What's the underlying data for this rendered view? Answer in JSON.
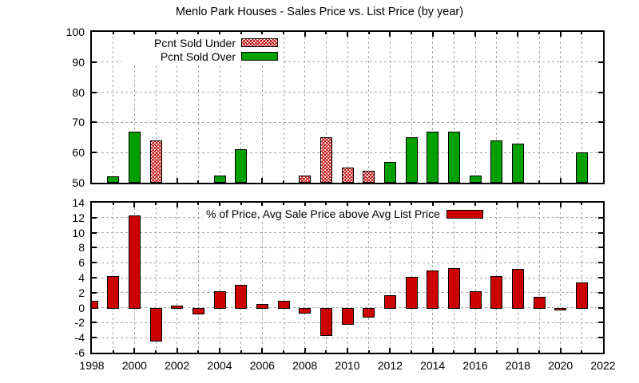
{
  "title": "Menlo Park Houses - Sales Price vs. List Price (by year)",
  "colors": {
    "green": "#00a000",
    "red": "#cc0000",
    "hatch_red": "#c00000",
    "grid": "#a8a8a8",
    "axis": "#000000",
    "background": "#ffffff"
  },
  "xaxis": {
    "range": [
      1998,
      2022
    ],
    "labeled_ticks": [
      1998,
      2000,
      2002,
      2004,
      2006,
      2008,
      2010,
      2012,
      2014,
      2016,
      2018,
      2020,
      2022
    ],
    "minor_step": 1
  },
  "chart_data": [
    {
      "id": "top",
      "type": "bar",
      "ylim": [
        50,
        100
      ],
      "yticks": [
        50,
        60,
        70,
        80,
        90,
        100
      ],
      "grid": "on",
      "legend_position": "top-left",
      "legend": [
        {
          "label": "Pcnt Sold Under",
          "style": "hatched"
        },
        {
          "label": "Pcnt Sold Over",
          "style": "green"
        }
      ],
      "series": [
        {
          "name": "Pcnt Sold Under",
          "style": "hatched",
          "points": [
            [
              2001,
              64
            ],
            [
              2008,
              52.5
            ],
            [
              2009,
              65
            ],
            [
              2010,
              55
            ],
            [
              2011,
              54
            ]
          ]
        },
        {
          "name": "Pcnt Sold Over",
          "style": "green",
          "points": [
            [
              1999,
              52
            ],
            [
              2000,
              67
            ],
            [
              2004,
              52.5
            ],
            [
              2005,
              61
            ],
            [
              2012,
              57
            ],
            [
              2013,
              65
            ],
            [
              2014,
              67
            ],
            [
              2015,
              67
            ],
            [
              2016,
              52.5
            ],
            [
              2017,
              64
            ],
            [
              2018,
              63
            ],
            [
              2021,
              60
            ]
          ]
        }
      ]
    },
    {
      "id": "bottom",
      "type": "bar",
      "ylim": [
        -6,
        14
      ],
      "yticks": [
        -6,
        -4,
        -2,
        0,
        2,
        4,
        6,
        8,
        10,
        12,
        14
      ],
      "grid": "on",
      "legend_position": "top-center",
      "legend": [
        {
          "label": "% of Price, Avg Sale Price above Avg List Price",
          "style": "red"
        }
      ],
      "series": [
        {
          "name": "% of Price, Avg Sale Price above Avg List Price",
          "style": "red",
          "points": [
            [
              1998,
              0.9
            ],
            [
              1999,
              4.2
            ],
            [
              2000,
              12.3
            ],
            [
              2001,
              -4.3
            ],
            [
              2002,
              0.3
            ],
            [
              2003,
              -0.7
            ],
            [
              2004,
              2.2
            ],
            [
              2005,
              3.0
            ],
            [
              2006,
              0.5
            ],
            [
              2007,
              0.9
            ],
            [
              2008,
              -0.6
            ],
            [
              2009,
              -3.6
            ],
            [
              2010,
              -2.1
            ],
            [
              2011,
              -1.2
            ],
            [
              2012,
              1.7
            ],
            [
              2013,
              4.1
            ],
            [
              2014,
              5.0
            ],
            [
              2015,
              5.3
            ],
            [
              2016,
              2.2
            ],
            [
              2017,
              4.2
            ],
            [
              2018,
              5.2
            ],
            [
              2019,
              1.5
            ],
            [
              2020,
              -0.1
            ],
            [
              2021,
              3.4
            ]
          ]
        }
      ]
    }
  ]
}
